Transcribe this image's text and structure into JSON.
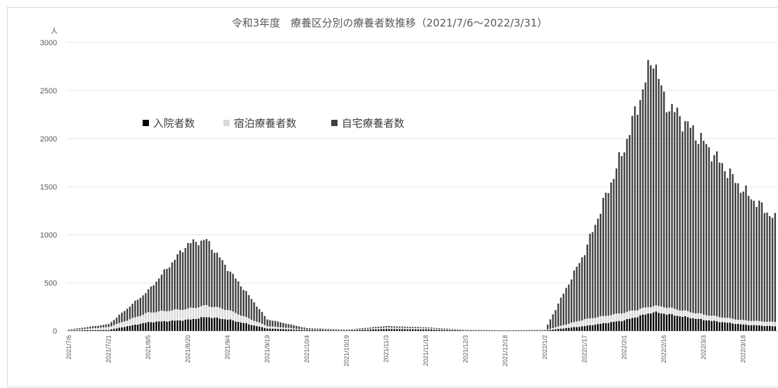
{
  "chart_data": {
    "type": "bar",
    "stacked": true,
    "title": "令和3年度　療養区分別の療養者数推移（2021/7/6～2022/3/31）",
    "y_unit": "人",
    "ylim": [
      0,
      3000
    ],
    "y_ticks": [
      0,
      500,
      1000,
      1500,
      2000,
      2500,
      3000
    ],
    "grid": true,
    "legend_position": "upper-left inside plot",
    "x_range": [
      "2021/7/6",
      "2022/3/31"
    ],
    "x_tick_labels": [
      "2021/7/6",
      "2021/7/21",
      "2021/8/5",
      "2021/8/20",
      "2021/9/4",
      "2021/9/19",
      "2021/10/4",
      "2021/10/19",
      "2021/11/3",
      "2021/11/18",
      "2021/12/3",
      "2021/12/18",
      "2022/1/2",
      "2022/1/17",
      "2022/2/1",
      "2022/2/16",
      "2022/3/3",
      "2022/3/18"
    ],
    "series": [
      {
        "name": "入院者数",
        "color": "#000000",
        "keypoints": [
          [
            "2021/7/6",
            5
          ],
          [
            "2021/7/21",
            10
          ],
          [
            "2021/8/5",
            90
          ],
          [
            "2021/8/20",
            115
          ],
          [
            "2021/8/27",
            145
          ],
          [
            "2021/9/4",
            120
          ],
          [
            "2021/9/19",
            25
          ],
          [
            "2021/10/4",
            8
          ],
          [
            "2021/10/19",
            5
          ],
          [
            "2021/11/3",
            20
          ],
          [
            "2021/11/18",
            15
          ],
          [
            "2021/12/3",
            5
          ],
          [
            "2021/12/18",
            3
          ],
          [
            "2022/1/2",
            5
          ],
          [
            "2022/1/17",
            50
          ],
          [
            "2022/2/1",
            110
          ],
          [
            "2022/2/12",
            195
          ],
          [
            "2022/2/16",
            180
          ],
          [
            "2022/3/3",
            115
          ],
          [
            "2022/3/18",
            65
          ],
          [
            "2022/3/31",
            45
          ]
        ]
      },
      {
        "name": "宿泊療養者数",
        "color": "#d9d9d9",
        "keypoints": [
          [
            "2021/7/6",
            3
          ],
          [
            "2021/7/21",
            30
          ],
          [
            "2021/8/5",
            100
          ],
          [
            "2021/8/20",
            115
          ],
          [
            "2021/8/27",
            120
          ],
          [
            "2021/9/4",
            100
          ],
          [
            "2021/9/19",
            25
          ],
          [
            "2021/10/4",
            5
          ],
          [
            "2021/10/19",
            3
          ],
          [
            "2021/11/3",
            15
          ],
          [
            "2021/11/18",
            12
          ],
          [
            "2021/12/3",
            3
          ],
          [
            "2021/12/18",
            2
          ],
          [
            "2022/1/2",
            3
          ],
          [
            "2022/1/17",
            70
          ],
          [
            "2022/2/1",
            80
          ],
          [
            "2022/2/12",
            65
          ],
          [
            "2022/2/16",
            70
          ],
          [
            "2022/3/3",
            55
          ],
          [
            "2022/3/18",
            45
          ],
          [
            "2022/3/31",
            45
          ]
        ]
      },
      {
        "name": "自宅療養者数",
        "color": "#404040",
        "keypoints": [
          [
            "2021/7/6",
            5
          ],
          [
            "2021/7/21",
            30
          ],
          [
            "2021/8/5",
            230
          ],
          [
            "2021/8/20",
            680
          ],
          [
            "2021/8/27",
            680
          ],
          [
            "2021/9/4",
            430
          ],
          [
            "2021/9/19",
            70
          ],
          [
            "2021/10/4",
            15
          ],
          [
            "2021/10/19",
            5
          ],
          [
            "2021/11/3",
            15
          ],
          [
            "2021/11/18",
            10
          ],
          [
            "2021/12/3",
            3
          ],
          [
            "2021/12/18",
            2
          ],
          [
            "2022/1/2",
            3
          ],
          [
            "2022/1/17",
            700
          ],
          [
            "2022/2/1",
            1720
          ],
          [
            "2022/2/12",
            2600
          ],
          [
            "2022/2/16",
            2150
          ],
          [
            "2022/3/3",
            1790
          ],
          [
            "2022/3/18",
            1350
          ],
          [
            "2022/3/31",
            1050
          ]
        ]
      }
    ]
  }
}
